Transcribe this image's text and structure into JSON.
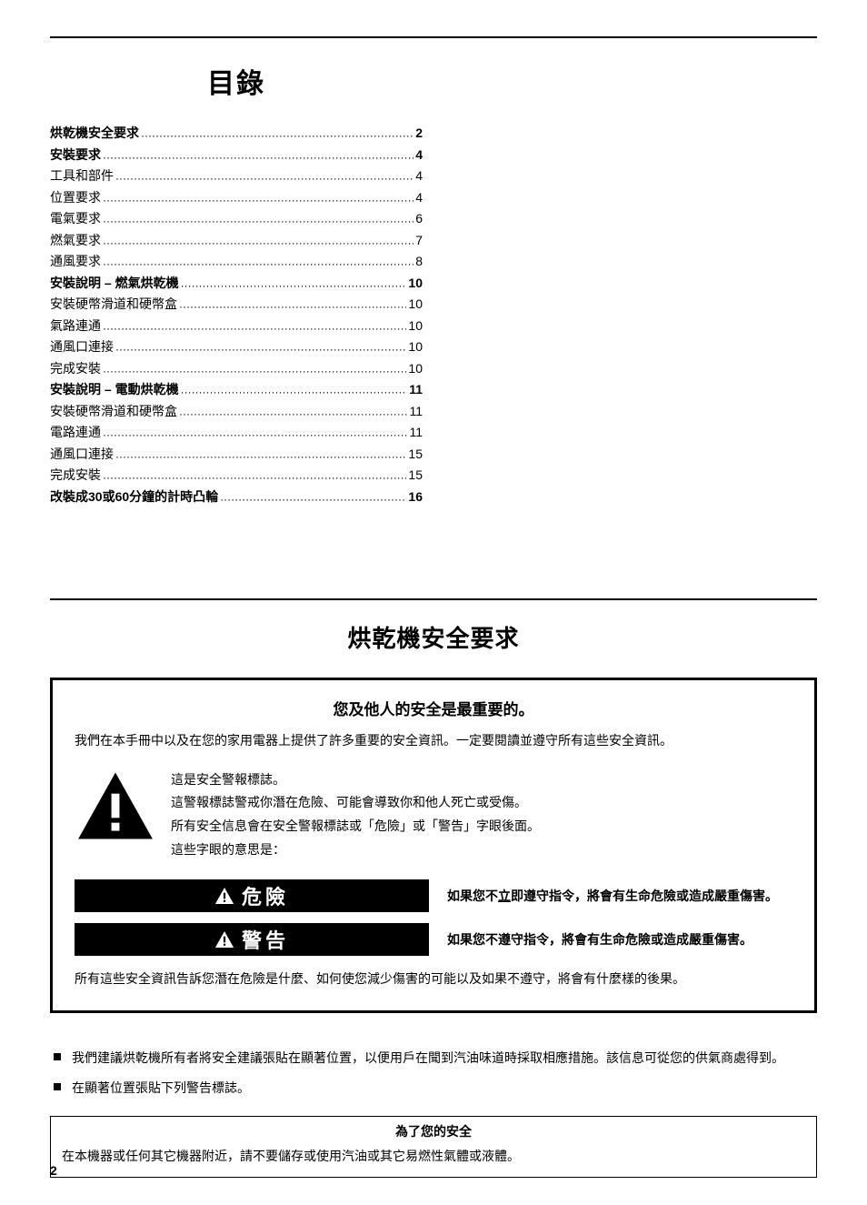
{
  "toc": {
    "title": "目錄",
    "entries": [
      {
        "label": "烘乾機安全要求",
        "page": "2",
        "bold": true
      },
      {
        "label": "安裝要求",
        "page": "4",
        "bold": true
      },
      {
        "label": "工具和部件",
        "page": "4",
        "bold": false
      },
      {
        "label": "位置要求",
        "page": "4",
        "bold": false
      },
      {
        "label": "電氣要求",
        "page": "6",
        "bold": false
      },
      {
        "label": "燃氣要求",
        "page": "7",
        "bold": false
      },
      {
        "label": "通風要求",
        "page": "8",
        "bold": false
      },
      {
        "label": "安裝說明 – 燃氣烘乾機",
        "page": "10",
        "bold": true
      },
      {
        "label": "安裝硬幣滑道和硬幣盒",
        "page": "10",
        "bold": false
      },
      {
        "label": "氣路連通",
        "page": "10",
        "bold": false
      },
      {
        "label": "通風口連接",
        "page": "10",
        "bold": false
      },
      {
        "label": "完成安裝",
        "page": "10",
        "bold": false
      },
      {
        "label": "安裝說明 – 電動烘乾機",
        "page": "11",
        "bold": true
      },
      {
        "label": "安裝硬幣滑道和硬幣盒",
        "page": "11",
        "bold": false
      },
      {
        "label": "電路連通",
        "page": "11",
        "bold": false
      },
      {
        "label": "通風口連接",
        "page": "15",
        "bold": false
      },
      {
        "label": "完成安裝",
        "page": "15",
        "bold": false
      },
      {
        "label": "改裝成30或60分鐘的計時凸輪",
        "page": "16",
        "bold": true
      }
    ]
  },
  "section_title": "烘乾機安全要求",
  "safety_box": {
    "head": "您及他人的安全是最重要的。",
    "intro": "我們在本手冊中以及在您的家用電器上提供了許多重要的安全資訊。一定要閱讀並遵守所有這些安全資訊。",
    "alert_icon_color": "#000000",
    "alert_lines": [
      "這是安全警報標誌。",
      "這警報標誌警戒你潛在危險、可能會導致你和他人死亡或受傷。",
      "所有安全信息會在安全警報標誌或「危險」或「警告」字眼後面。",
      "這些字眼的意思是："
    ],
    "danger_label": "危險",
    "danger_desc_pre": "如果您不",
    "danger_desc_ul": "立",
    "danger_desc_post": "即遵守指令，將會有生命危險或造成嚴重傷害。",
    "warning_label": "警告",
    "warning_desc": "如果您不遵守指令，將會有生命危險或造成嚴重傷害。",
    "foot": "所有這些安全資訊告訴您潛在危險是什麼、如何使您減少傷害的可能以及如果不遵守，將會有什麼樣的後果。"
  },
  "recommendations": [
    "我們建議烘乾機所有者將安全建議張貼在顯著位置，以便用戶在聞到汽油味道時採取相應措施。該信息可從您的供氣商處得到。",
    "在顯著位置張貼下列警告標誌。"
  ],
  "for_your_safety": {
    "title": "為了您的安全",
    "body": "在本機器或任何其它機器附近，請不要儲存或使用汽油或其它易燃性氣體或液體。"
  },
  "page_number": "2",
  "colors": {
    "text": "#000000",
    "background": "#ffffff",
    "label_bg": "#000000",
    "label_fg": "#ffffff"
  }
}
